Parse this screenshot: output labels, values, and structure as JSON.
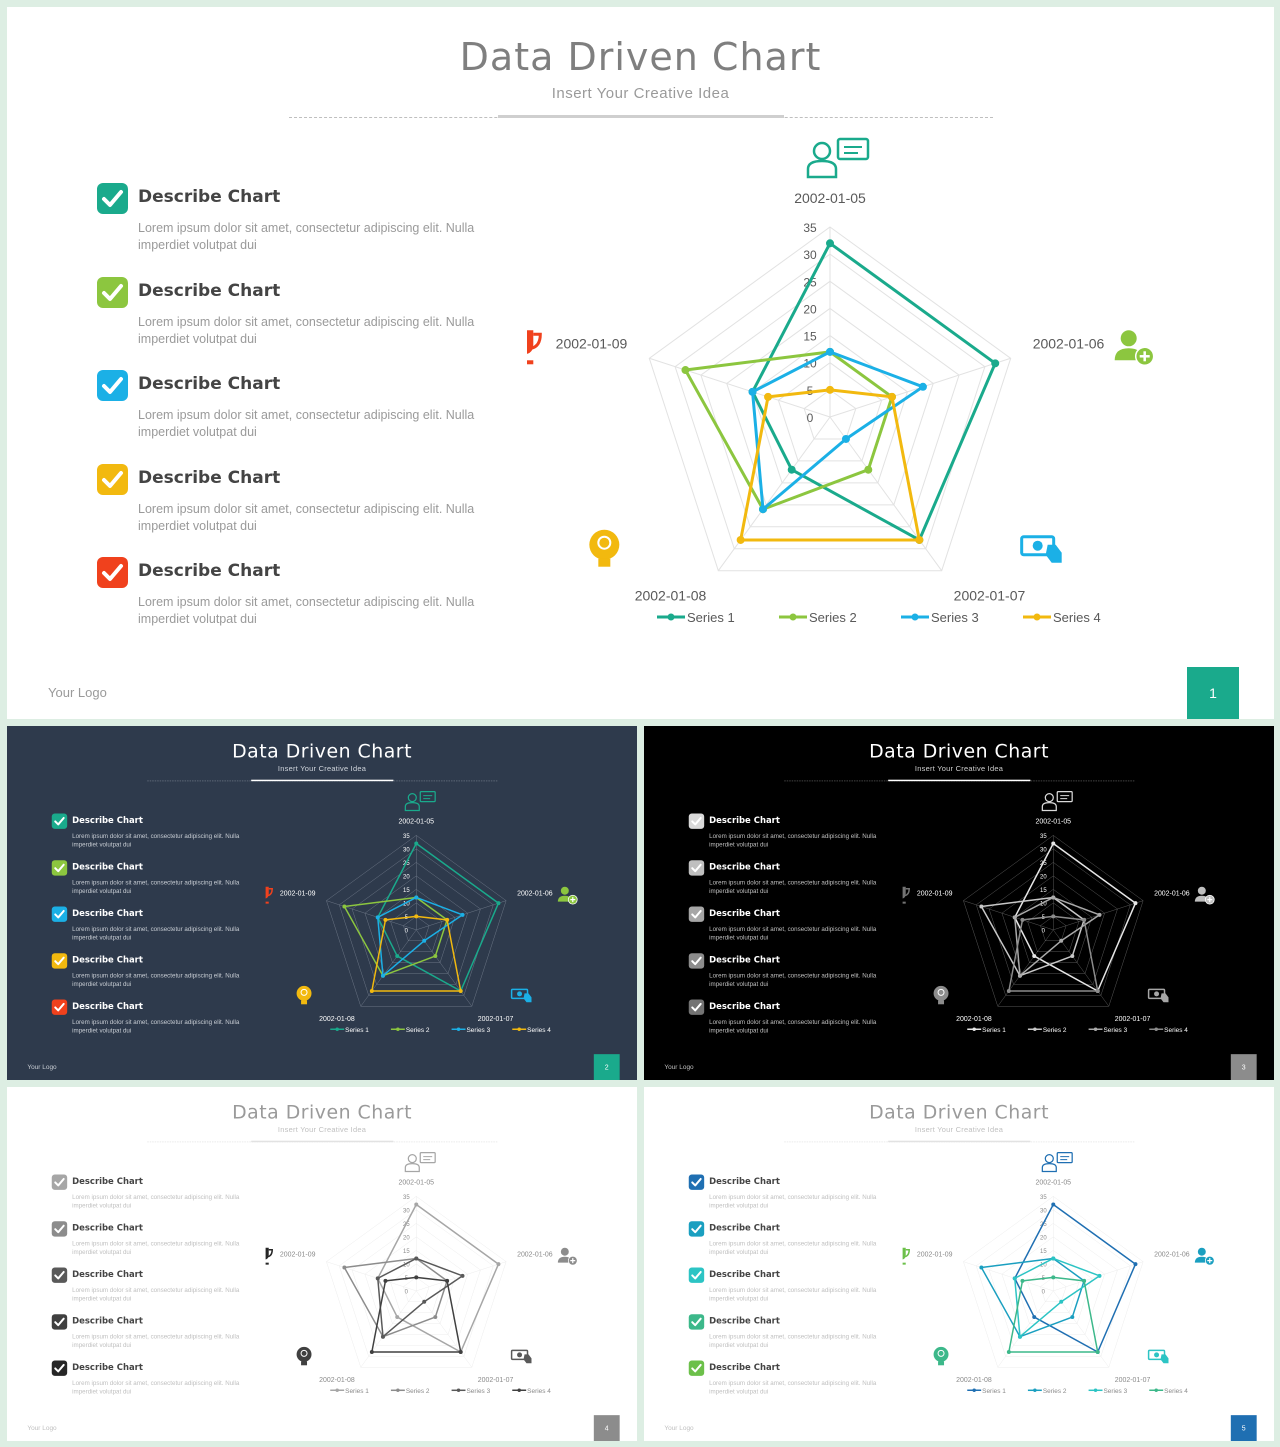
{
  "slide": {
    "title": "Data Driven Chart",
    "subtitle": "Insert Your Creative Idea",
    "logo": "Your Logo",
    "items": [
      {
        "title": "Describe Chart",
        "text": "Lorem ipsum dolor sit amet, consectetur adipiscing elit. Nulla imperdiet volutpat dui"
      },
      {
        "title": "Describe Chart",
        "text": "Lorem ipsum dolor sit amet, consectetur adipiscing elit. Nulla imperdiet volutpat dui"
      },
      {
        "title": "Describe Chart",
        "text": "Lorem ipsum dolor sit amet, consectetur adipiscing elit. Nulla imperdiet volutpat dui"
      },
      {
        "title": "Describe Chart",
        "text": "Lorem ipsum dolor sit amet, consectetur adipiscing elit. Nulla imperdiet volutpat dui"
      },
      {
        "title": "Describe Chart",
        "text": "Lorem ipsum dolor sit amet, consectetur adipiscing elit. Nulla imperdiet volutpat dui"
      }
    ],
    "icons": [
      "presenter-icon",
      "add-user-icon",
      "money-hand-icon",
      "lightbulb-head-icon",
      "trophy-icon"
    ]
  },
  "themes": [
    {
      "page": "1",
      "bg": "#ffffff",
      "title": "#7f7f7f",
      "subtitle": "#9a9a9a",
      "text": "#444444",
      "muted": "#9a9a9a",
      "rule": "#bfbfbf",
      "rule_solid": "#cfcfcf",
      "grid": "#e2e2e2",
      "axis_text": "#595959",
      "checks": [
        "#1aaa8c",
        "#8cc63f",
        "#1bb0e6",
        "#f2b90f",
        "#f0411d"
      ],
      "series": [
        "#1aaa8c",
        "#8cc63f",
        "#1bb0e6",
        "#f2b90f"
      ],
      "icons": [
        "#1aaa8c",
        "#8cc63f",
        "#1bb0e6",
        "#f2b90f",
        "#f0411d"
      ],
      "page_bg": "#1aaa8c"
    },
    {
      "page": "2",
      "bg": "#2e3a4c",
      "title": "#ffffff",
      "subtitle": "#d0d5dc",
      "text": "#ffffff",
      "muted": "#c7ccd3",
      "rule": "#8d95a1",
      "rule_solid": "#ffffff",
      "grid": "#6c7686",
      "axis_text": "#ffffff",
      "checks": [
        "#1aaa8c",
        "#8cc63f",
        "#1bb0e6",
        "#f2b90f",
        "#f0411d"
      ],
      "series": [
        "#1aaa8c",
        "#8cc63f",
        "#1bb0e6",
        "#f2b90f"
      ],
      "icons": [
        "#1aaa8c",
        "#8cc63f",
        "#1bb0e6",
        "#f2b90f",
        "#f0411d"
      ],
      "page_bg": "#1aaa8c"
    },
    {
      "page": "3",
      "bg": "#000000",
      "title": "#ffffff",
      "subtitle": "#cfcfcf",
      "text": "#ffffff",
      "muted": "#bfbfbf",
      "rule": "#8a8a8a",
      "rule_solid": "#ffffff",
      "grid": "#5a5a5a",
      "axis_text": "#ffffff",
      "checks": [
        "#d9d9d9",
        "#bfbfbf",
        "#a6a6a6",
        "#8c8c8c",
        "#737373"
      ],
      "series": [
        "#e6e6e6",
        "#c8c8c8",
        "#aaaaaa",
        "#8c8c8c"
      ],
      "icons": [
        "#d9d9d9",
        "#bfbfbf",
        "#a6a6a6",
        "#8c8c8c",
        "#737373"
      ],
      "page_bg": "#8c8c8c"
    },
    {
      "page": "4",
      "bg": "#ffffff",
      "title": "#9a9a9a",
      "subtitle": "#c0c0c0",
      "text": "#444444",
      "muted": "#c0c0c0",
      "rule": "#d5d5d5",
      "rule_solid": "#e2e2e2",
      "grid": "#ececec",
      "axis_text": "#8a8a8a",
      "checks": [
        "#a6a6a6",
        "#8c8c8c",
        "#595959",
        "#404040",
        "#262626"
      ],
      "series": [
        "#a6a6a6",
        "#8c8c8c",
        "#595959",
        "#404040"
      ],
      "icons": [
        "#a6a6a6",
        "#8c8c8c",
        "#595959",
        "#404040",
        "#262626"
      ],
      "page_bg": "#8c8c8c"
    },
    {
      "page": "5",
      "bg": "#ffffff",
      "title": "#9a9a9a",
      "subtitle": "#c0c0c0",
      "text": "#444444",
      "muted": "#c0c0c0",
      "rule": "#d5d5d5",
      "rule_solid": "#e2e2e2",
      "grid": "#ececec",
      "axis_text": "#8a8a8a",
      "checks": [
        "#1f6fb2",
        "#1a9fc0",
        "#2cc4c4",
        "#3cb88a",
        "#6cc04a"
      ],
      "series": [
        "#1f6fb2",
        "#1a9fc0",
        "#2cc4c4",
        "#3cb88a"
      ],
      "icons": [
        "#1f6fb2",
        "#1a9fc0",
        "#2cc4c4",
        "#3cb88a",
        "#6cc04a"
      ],
      "page_bg": "#1f6fb2"
    }
  ],
  "chart_data": {
    "type": "radar",
    "categories": [
      "2002-01-05",
      "2002-01-06",
      "2002-01-07",
      "2002-01-08",
      "2002-01-09"
    ],
    "rlim": [
      0,
      35
    ],
    "ticks": [
      0,
      5,
      10,
      15,
      20,
      25,
      30,
      35
    ],
    "grid": true,
    "legend": "bottom",
    "series": [
      {
        "name": "Series 1",
        "values": [
          32,
          32,
          28,
          12,
          15
        ]
      },
      {
        "name": "Series 2",
        "values": [
          12,
          12,
          12,
          21,
          28
        ]
      },
      {
        "name": "Series 3",
        "values": [
          12,
          18,
          5,
          21,
          15
        ]
      },
      {
        "name": "Series 4",
        "values": [
          5,
          12,
          28,
          28,
          12
        ]
      }
    ]
  }
}
